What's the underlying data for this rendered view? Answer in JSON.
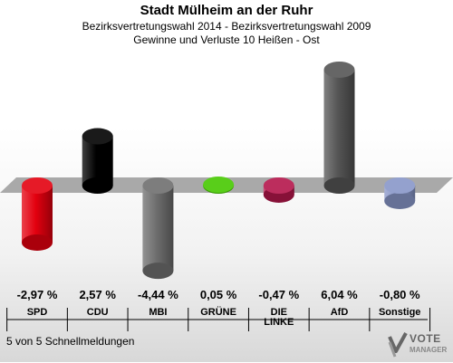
{
  "title": "Stadt Mülheim an der Ruhr",
  "subtitle1": "Bezirksvertretungswahl 2014 - Bezirksvertretungswahl 2009",
  "subtitle2": "Gewinne und Verluste 10 Heißen - Ost",
  "footer": "5 von 5 Schnellmeldungen",
  "logo": {
    "icon": "votemanager-logo-icon",
    "text": "VOTE",
    "sub": "MANAGER"
  },
  "chart_data": {
    "type": "bar",
    "categories": [
      "SPD",
      "CDU",
      "MBI",
      "GRÜNE",
      "DIE LINKE",
      "AfD",
      "Sonstige"
    ],
    "category_lines": [
      [
        "SPD"
      ],
      [
        "CDU"
      ],
      [
        "MBI"
      ],
      [
        "GRÜNE"
      ],
      [
        "DIE",
        "LINKE"
      ],
      [
        "AfD"
      ],
      [
        "Sonstige"
      ]
    ],
    "values": [
      -2.97,
      2.57,
      -4.44,
      0.05,
      -0.47,
      6.04,
      -0.8
    ],
    "value_labels": [
      "-2,97 %",
      "2,57 %",
      "-4,44 %",
      "0,05 %",
      "-0,47 %",
      "6,04 %",
      "-0,80 %"
    ],
    "colors": [
      "#e3000f",
      "#000000",
      "#6e6e6e",
      "#46c800",
      "#b4164b",
      "#555555",
      "#8896c8"
    ],
    "grid": false
  }
}
